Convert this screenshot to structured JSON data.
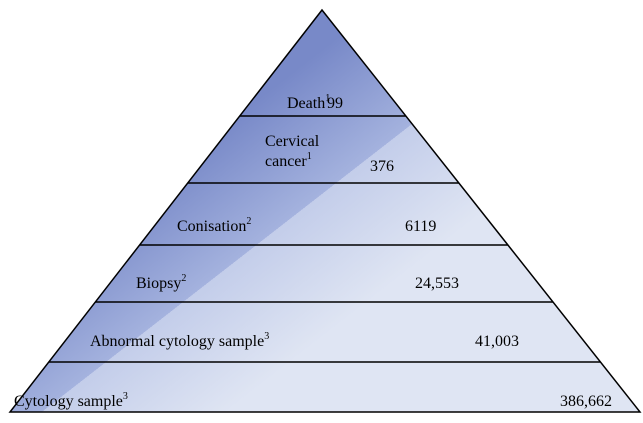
{
  "levels": [
    {
      "label_lines": [
        "Death"
      ],
      "sup": "1",
      "value": "99"
    },
    {
      "label_lines": [
        "Cervical",
        "cancer"
      ],
      "sup": "1",
      "value": "376"
    },
    {
      "label_lines": [
        "Conisation"
      ],
      "sup": "2",
      "value": "6119"
    },
    {
      "label_lines": [
        "Biopsy"
      ],
      "sup": "2",
      "value": "24,553"
    },
    {
      "label_lines": [
        "Abnormal cytology sample"
      ],
      "sup": "3",
      "value": "41,003"
    },
    {
      "label_lines": [
        "Cytology sample"
      ],
      "sup": "3",
      "value": "386,662"
    }
  ]
}
